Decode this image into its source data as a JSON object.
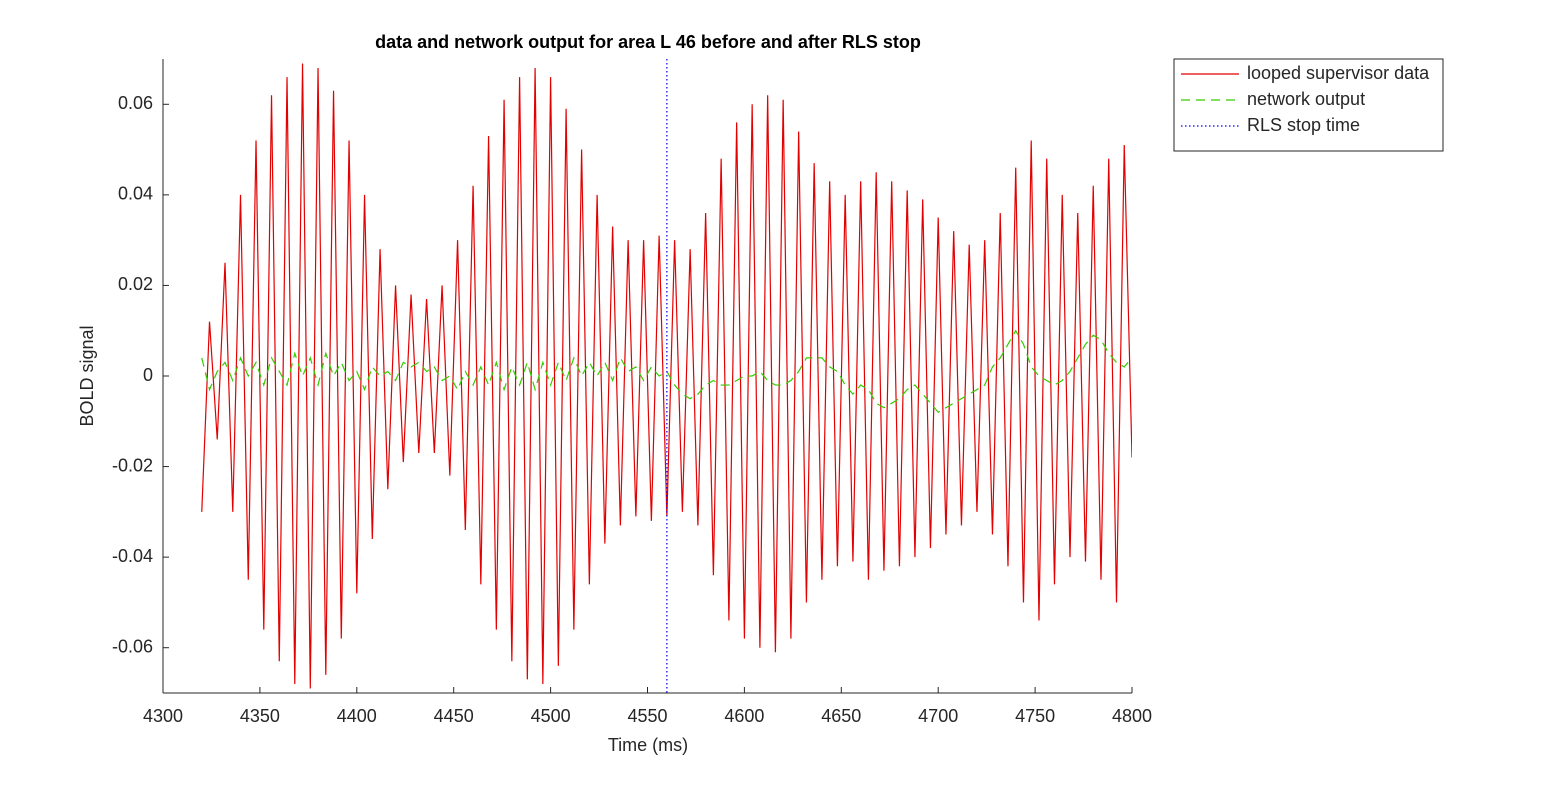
{
  "chart_data": {
    "type": "line",
    "title": "data and network output for area L 46 before and after RLS stop",
    "xlabel": "Time (ms)",
    "ylabel": "BOLD signal",
    "xlim": [
      4300,
      4800
    ],
    "xticks": [
      4300,
      4350,
      4400,
      4450,
      4500,
      4550,
      4600,
      4650,
      4700,
      4750,
      4800
    ],
    "ylim": [
      -0.07,
      0.07
    ],
    "yticks": [
      -0.06,
      -0.04,
      -0.02,
      0,
      0.02,
      0.04,
      0.06
    ],
    "legend": "outside-top-right",
    "x": [
      4320,
      4324,
      4328,
      4332,
      4336,
      4340,
      4344,
      4348,
      4352,
      4356,
      4360,
      4364,
      4368,
      4372,
      4376,
      4380,
      4384,
      4388,
      4392,
      4396,
      4400,
      4404,
      4408,
      4412,
      4416,
      4420,
      4424,
      4428,
      4432,
      4436,
      4440,
      4444,
      4448,
      4452,
      4456,
      4460,
      4464,
      4468,
      4472,
      4476,
      4480,
      4484,
      4488,
      4492,
      4496,
      4500,
      4504,
      4508,
      4512,
      4516,
      4520,
      4524,
      4528,
      4532,
      4536,
      4540,
      4544,
      4548,
      4552,
      4556,
      4560,
      4564,
      4568,
      4572,
      4576,
      4580,
      4584,
      4588,
      4592,
      4596,
      4600,
      4604,
      4608,
      4612,
      4616,
      4620,
      4624,
      4628,
      4632,
      4636,
      4640,
      4644,
      4648,
      4652,
      4656,
      4660,
      4664,
      4668,
      4672,
      4676,
      4680,
      4684,
      4688,
      4692,
      4696,
      4700,
      4704,
      4708,
      4712,
      4716,
      4720,
      4724,
      4728,
      4732,
      4736,
      4740,
      4744,
      4748,
      4752,
      4756,
      4760,
      4764,
      4768,
      4772,
      4776,
      4780,
      4784,
      4788,
      4792,
      4796,
      4800
    ],
    "series": [
      {
        "name": "looped supervisor data",
        "color": "#e30000",
        "linestyle": "solid",
        "values": [
          -0.03,
          0.012,
          -0.014,
          0.025,
          -0.03,
          0.04,
          -0.045,
          0.052,
          -0.056,
          0.062,
          -0.063,
          0.066,
          -0.068,
          0.069,
          -0.069,
          0.068,
          -0.066,
          0.063,
          -0.058,
          0.052,
          -0.048,
          0.04,
          -0.036,
          0.028,
          -0.025,
          0.02,
          -0.019,
          0.018,
          -0.017,
          0.017,
          -0.017,
          0.02,
          -0.022,
          0.03,
          -0.034,
          0.042,
          -0.046,
          0.053,
          -0.056,
          0.061,
          -0.063,
          0.066,
          -0.067,
          0.068,
          -0.068,
          0.066,
          -0.064,
          0.059,
          -0.056,
          0.05,
          -0.046,
          0.04,
          -0.037,
          0.033,
          -0.033,
          0.03,
          -0.031,
          0.03,
          -0.032,
          0.031,
          -0.031,
          0.03,
          -0.03,
          0.028,
          -0.033,
          0.036,
          -0.044,
          0.048,
          -0.054,
          0.056,
          -0.058,
          0.06,
          -0.06,
          0.062,
          -0.061,
          0.061,
          -0.058,
          0.054,
          -0.05,
          0.047,
          -0.045,
          0.043,
          -0.042,
          0.04,
          -0.041,
          0.043,
          -0.045,
          0.045,
          -0.043,
          0.043,
          -0.042,
          0.041,
          -0.04,
          0.039,
          -0.038,
          0.035,
          -0.035,
          0.032,
          -0.033,
          0.029,
          -0.03,
          0.03,
          -0.035,
          0.036,
          -0.042,
          0.046,
          -0.05,
          0.052,
          -0.054,
          0.048,
          -0.046,
          0.04,
          -0.04,
          0.036,
          -0.041,
          0.042,
          -0.045,
          0.048,
          -0.05,
          0.051,
          -0.018
        ]
      },
      {
        "name": "network output",
        "color": "#33cc00",
        "linestyle": "dashed",
        "values": [
          0.004,
          -0.003,
          0.001,
          0.003,
          -0.001,
          0.004,
          0.0,
          0.003,
          -0.002,
          0.004,
          0.001,
          -0.002,
          0.005,
          0.0,
          0.004,
          -0.002,
          0.005,
          0.0,
          0.003,
          -0.001,
          0.001,
          -0.003,
          0.002,
          0.0,
          0.001,
          -0.001,
          0.003,
          0.002,
          0.003,
          0.001,
          0.002,
          -0.001,
          0.0,
          -0.003,
          0.001,
          -0.002,
          0.002,
          -0.002,
          0.003,
          -0.003,
          0.002,
          -0.002,
          0.003,
          -0.003,
          0.003,
          -0.002,
          0.003,
          -0.001,
          0.004,
          0.0,
          0.003,
          0.0,
          0.003,
          -0.001,
          0.004,
          0.001,
          0.002,
          -0.001,
          0.002,
          0.0,
          0.001,
          -0.002,
          -0.004,
          -0.005,
          -0.004,
          -0.002,
          -0.001,
          -0.002,
          -0.002,
          -0.001,
          0.0,
          0.0,
          0.001,
          -0.001,
          -0.002,
          -0.002,
          -0.001,
          0.001,
          0.004,
          0.004,
          0.004,
          0.002,
          0.001,
          -0.002,
          -0.004,
          -0.002,
          -0.003,
          -0.006,
          -0.007,
          -0.006,
          -0.005,
          -0.003,
          -0.002,
          -0.004,
          -0.006,
          -0.008,
          -0.007,
          -0.006,
          -0.005,
          -0.004,
          -0.003,
          -0.002,
          0.002,
          0.004,
          0.007,
          0.01,
          0.007,
          0.002,
          0.0,
          -0.001,
          -0.002,
          -0.001,
          0.001,
          0.004,
          0.007,
          0.009,
          0.008,
          0.005,
          0.003,
          0.002,
          0.004
        ]
      },
      {
        "name": "RLS stop time",
        "color": "#0000ff",
        "linestyle": "dotted",
        "x": 4560
      }
    ]
  }
}
